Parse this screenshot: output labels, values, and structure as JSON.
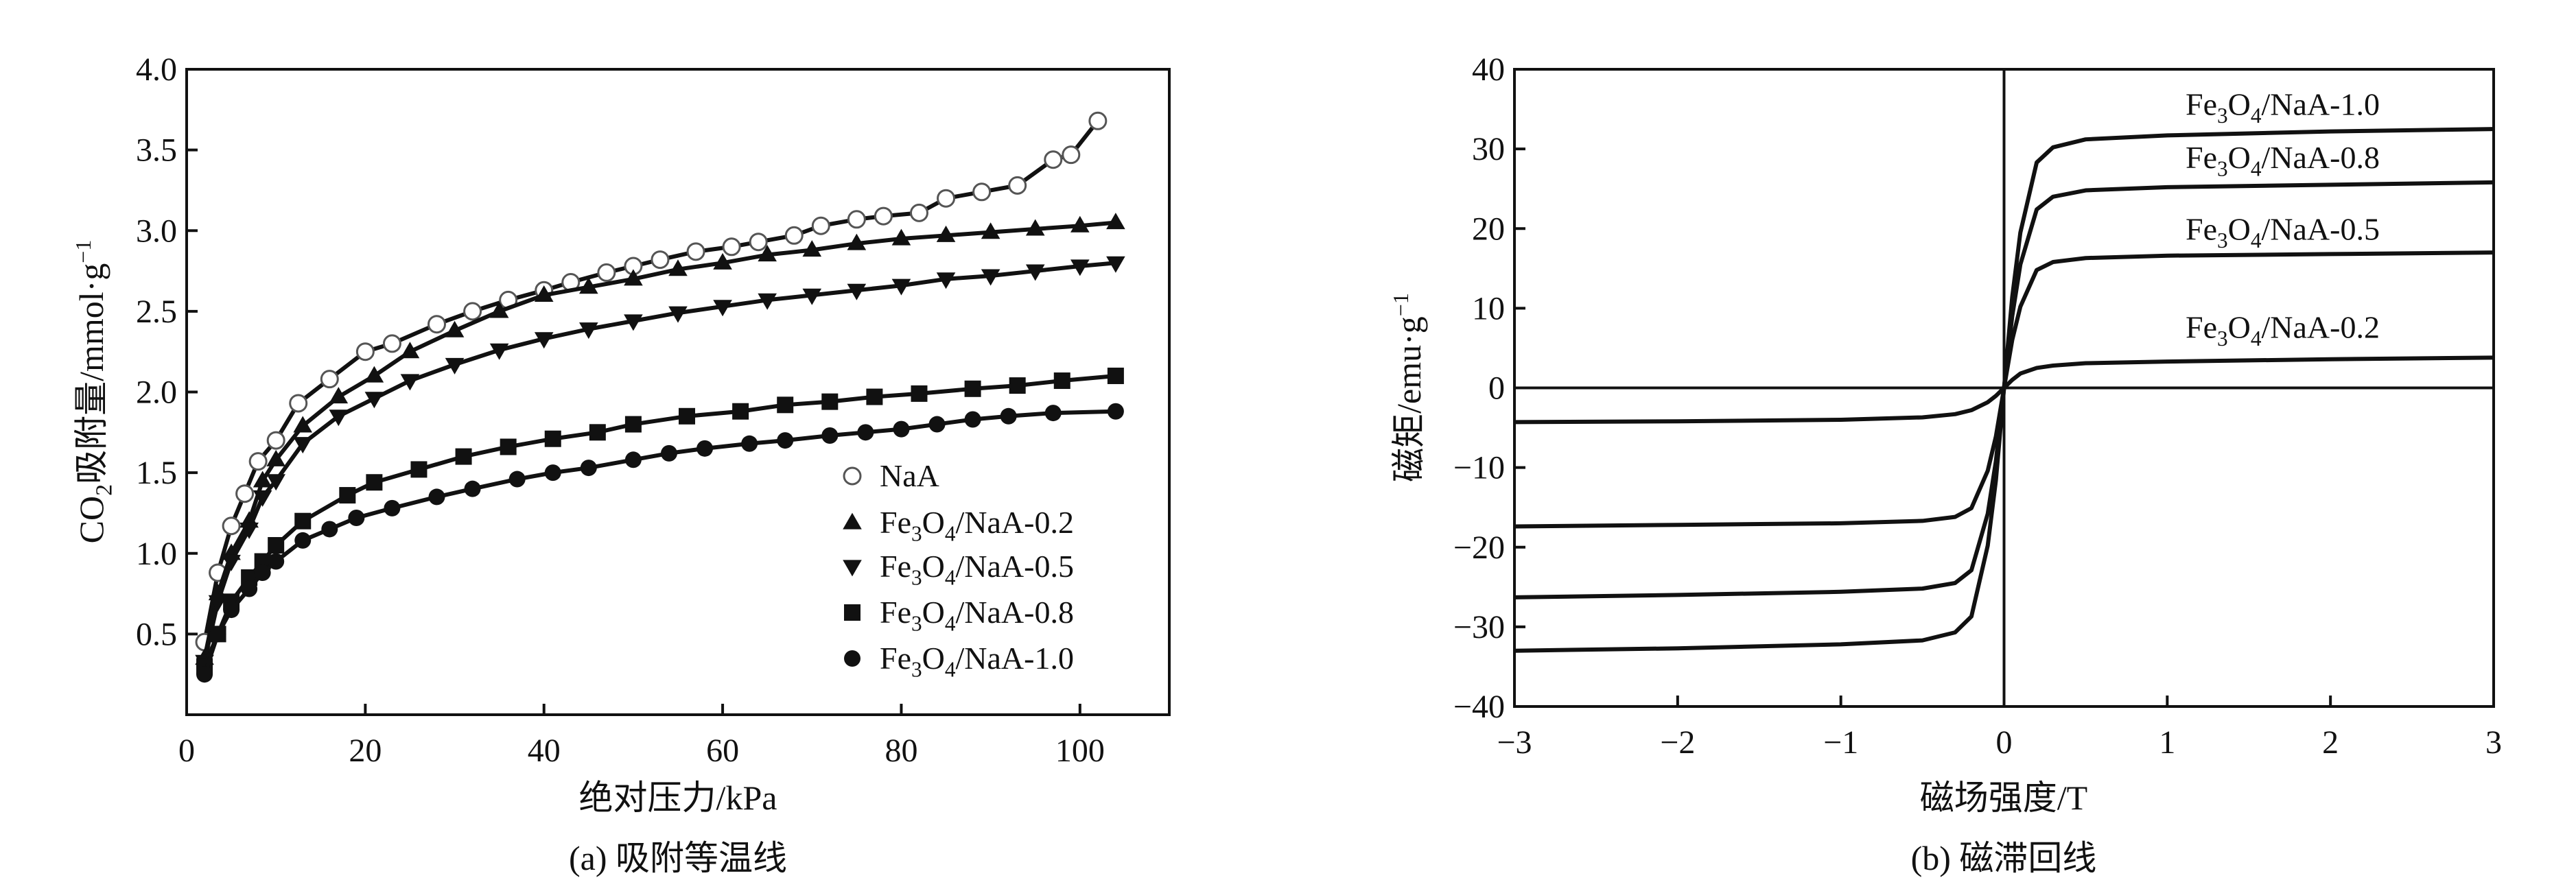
{
  "chart_data": [
    {
      "type": "line",
      "caption": "(a) 吸附等温线",
      "xlabel": "绝对压力/kPa",
      "ylabel_main": "CO2吸附量/mmol·g",
      "ylabel_sup": "−1",
      "xlim": [
        0,
        110
      ],
      "ylim": [
        0,
        4.0
      ],
      "xticks": [
        0,
        20,
        40,
        60,
        80,
        100
      ],
      "xtick_labels": [
        "0",
        "20",
        "40",
        "60",
        "80",
        "100"
      ],
      "yticks": [
        0.5,
        1.0,
        1.5,
        2.0,
        2.5,
        3.0,
        3.5,
        4.0
      ],
      "ytick_labels": [
        "0.5",
        "1.0",
        "1.5",
        "2.0",
        "2.5",
        "3.0",
        "3.5",
        "4.0"
      ],
      "grid": false,
      "legend_position": "lower-right",
      "series": [
        {
          "name": "NaA",
          "marker": "open-circle",
          "x": [
            2,
            3.5,
            5,
            6.5,
            8,
            10,
            12.5,
            16,
            20,
            23,
            28,
            32,
            36,
            40,
            43,
            47,
            50,
            53,
            57,
            61,
            64,
            68,
            71,
            75,
            78,
            82,
            85,
            89,
            93,
            97,
            99,
            102
          ],
          "y": [
            0.45,
            0.88,
            1.17,
            1.37,
            1.57,
            1.7,
            1.93,
            2.08,
            2.25,
            2.3,
            2.42,
            2.5,
            2.57,
            2.63,
            2.68,
            2.74,
            2.78,
            2.82,
            2.87,
            2.9,
            2.93,
            2.97,
            3.03,
            3.07,
            3.09,
            3.11,
            3.2,
            3.24,
            3.28,
            3.44,
            3.47,
            3.68
          ]
        },
        {
          "name": "Fe3O4/NaA-0.2",
          "marker": "triangle-up",
          "x": [
            2,
            3.5,
            5,
            7,
            8.5,
            10,
            13,
            17,
            21,
            25,
            30,
            35,
            40,
            45,
            50,
            55,
            60,
            65,
            70,
            75,
            80,
            85,
            90,
            95,
            100,
            104
          ],
          "y": [
            0.35,
            0.75,
            1.0,
            1.2,
            1.45,
            1.58,
            1.79,
            1.97,
            2.1,
            2.25,
            2.38,
            2.5,
            2.6,
            2.65,
            2.7,
            2.76,
            2.8,
            2.85,
            2.88,
            2.92,
            2.95,
            2.97,
            2.99,
            3.01,
            3.03,
            3.05
          ]
        },
        {
          "name": "Fe3O4/NaA-0.5",
          "marker": "triangle-down",
          "x": [
            2,
            3.5,
            5,
            7,
            8.5,
            10,
            13,
            17,
            21,
            25,
            30,
            35,
            40,
            45,
            50,
            55,
            60,
            65,
            70,
            75,
            80,
            85,
            90,
            95,
            100,
            104
          ],
          "y": [
            0.33,
            0.7,
            0.95,
            1.15,
            1.35,
            1.45,
            1.68,
            1.85,
            1.96,
            2.07,
            2.17,
            2.26,
            2.33,
            2.39,
            2.44,
            2.49,
            2.53,
            2.57,
            2.6,
            2.63,
            2.66,
            2.7,
            2.72,
            2.75,
            2.78,
            2.8
          ]
        },
        {
          "name": "Fe3O4/NaA-0.8",
          "marker": "square",
          "x": [
            2,
            3.5,
            5,
            7,
            8.5,
            10,
            13,
            18,
            21,
            26,
            31,
            36,
            41,
            46,
            50,
            56,
            62,
            67,
            72,
            77,
            82,
            88,
            93,
            98,
            104
          ],
          "y": [
            0.3,
            0.5,
            0.7,
            0.85,
            0.95,
            1.05,
            1.2,
            1.36,
            1.44,
            1.52,
            1.6,
            1.66,
            1.71,
            1.75,
            1.8,
            1.85,
            1.88,
            1.92,
            1.94,
            1.97,
            1.99,
            2.02,
            2.04,
            2.07,
            2.1
          ]
        },
        {
          "name": "Fe3O4/NaA-1.0",
          "marker": "filled-circle",
          "x": [
            2,
            3.5,
            5,
            7,
            8.5,
            10,
            13,
            16,
            19,
            23,
            28,
            32,
            37,
            41,
            45,
            50,
            54,
            58,
            63,
            67,
            72,
            76,
            80,
            84,
            88,
            92,
            97,
            104
          ],
          "y": [
            0.25,
            0.5,
            0.65,
            0.78,
            0.88,
            0.95,
            1.08,
            1.15,
            1.22,
            1.28,
            1.35,
            1.4,
            1.46,
            1.5,
            1.53,
            1.58,
            1.62,
            1.65,
            1.68,
            1.7,
            1.73,
            1.75,
            1.77,
            1.8,
            1.83,
            1.85,
            1.87,
            1.88
          ]
        }
      ]
    },
    {
      "type": "line",
      "caption": "(b) 磁滞回线",
      "xlabel": "磁场强度/T",
      "ylabel_main": "磁矩/emu·g",
      "ylabel_sup": "−1",
      "xlim": [
        -3,
        3
      ],
      "ylim": [
        -40,
        40
      ],
      "xticks": [
        -3,
        -2,
        -1,
        0,
        1,
        2,
        3
      ],
      "xtick_labels": [
        "−3",
        "−2",
        "−1",
        "0",
        "1",
        "2",
        "3"
      ],
      "yticks": [
        -40,
        -30,
        -20,
        -10,
        0,
        10,
        20,
        30,
        40
      ],
      "ytick_labels": [
        "−40",
        "−30",
        "−20",
        "−10",
        "0",
        "10",
        "20",
        "30",
        "40"
      ],
      "grid": false,
      "legend_position": "right, labels next to curves",
      "x": [
        -3,
        -2,
        -1,
        -0.5,
        -0.3,
        -0.2,
        -0.1,
        -0.05,
        0,
        0.05,
        0.1,
        0.2,
        0.3,
        0.5,
        1,
        2,
        3
      ],
      "series": [
        {
          "name": "Fe3O4/NaA-1.0",
          "y": [
            -33,
            -32.7,
            -32.2,
            -31.7,
            -30.7,
            -28.7,
            -19.8,
            -11.6,
            0,
            11.4,
            19.5,
            28.3,
            30.2,
            31.2,
            31.7,
            32.2,
            32.5
          ]
        },
        {
          "name": "Fe3O4/NaA-0.8",
          "y": [
            -26.3,
            -26.0,
            -25.6,
            -25.2,
            -24.5,
            -22.9,
            -15.8,
            -9.2,
            0,
            9.0,
            15.5,
            22.4,
            24.0,
            24.8,
            25.2,
            25.5,
            25.8
          ]
        },
        {
          "name": "Fe3O4/NaA-0.5",
          "y": [
            -17.4,
            -17.2,
            -17.0,
            -16.7,
            -16.2,
            -15.1,
            -10.4,
            -6.1,
            0,
            6.0,
            10.2,
            14.8,
            15.8,
            16.3,
            16.6,
            16.8,
            17
          ]
        },
        {
          "name": "Fe3O4/NaA-0.2",
          "y": [
            -4.3,
            -4.2,
            -4.0,
            -3.7,
            -3.3,
            -2.8,
            -1.8,
            -1.0,
            0,
            1.0,
            1.8,
            2.5,
            2.8,
            3.1,
            3.3,
            3.6,
            3.8
          ]
        }
      ]
    }
  ]
}
